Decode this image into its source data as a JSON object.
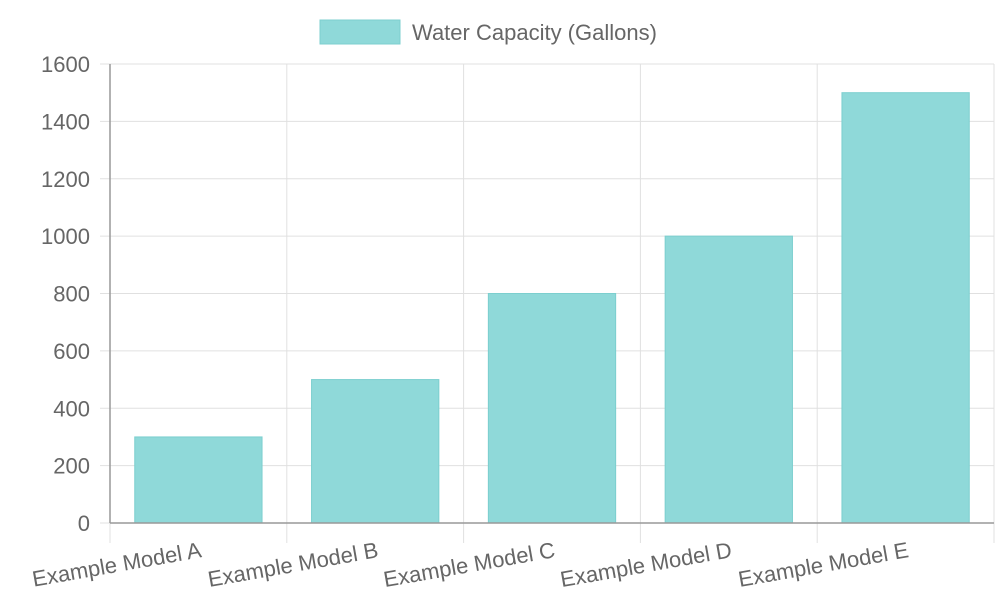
{
  "chart_data": {
    "type": "bar",
    "categories": [
      "Example Model A",
      "Example Model B",
      "Example Model C",
      "Example Model D",
      "Example Model E"
    ],
    "series": [
      {
        "name": "Water Capacity (Gallons)",
        "values": [
          300,
          500,
          800,
          1000,
          1500
        ]
      }
    ],
    "title": "",
    "xlabel": "",
    "ylabel": "",
    "ylim": [
      0,
      1600
    ],
    "yticks": [
      0,
      200,
      400,
      600,
      800,
      1000,
      1200,
      1400,
      1600
    ],
    "grid": true,
    "legend_position": "top",
    "colors": {
      "bar_fill": "#8fd9d9",
      "bar_stroke": "#7ccfcf",
      "grid": "#e0e0e0",
      "axis": "#999999",
      "text": "#666666"
    }
  }
}
